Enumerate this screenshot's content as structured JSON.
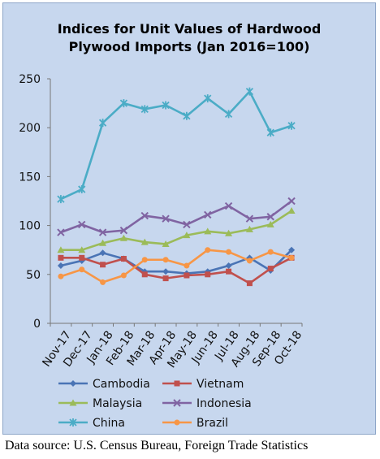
{
  "chart_data": {
    "type": "line",
    "title_line1": "Indices for Unit Values of Hardwood",
    "title_line2": "Plywood Imports (Jan 2016=100)",
    "categories": [
      "Nov-17",
      "Dec-17",
      "Jan-18",
      "Feb-18",
      "Mar-18",
      "Apr-18",
      "May-18",
      "Jun-18",
      "Jul-18",
      "Aug-18",
      "Sep-18",
      "Oct-18"
    ],
    "ylim": [
      0,
      250
    ],
    "yticks": [
      0,
      50,
      100,
      150,
      200,
      250
    ],
    "grid": false,
    "legend_position": "bottom",
    "series": [
      {
        "name": "Cambodia",
        "color": "#4a74b5",
        "marker": "diamond",
        "values": [
          59,
          64,
          72,
          66,
          53,
          53,
          51,
          53,
          59,
          67,
          54,
          75
        ]
      },
      {
        "name": "Vietnam",
        "color": "#c0504d",
        "marker": "square",
        "values": [
          67,
          67,
          60,
          66,
          50,
          46,
          49,
          50,
          53,
          41,
          56,
          67
        ]
      },
      {
        "name": "Malaysia",
        "color": "#9bbb59",
        "marker": "triangle",
        "values": [
          75,
          75,
          82,
          87,
          83,
          81,
          90,
          94,
          92,
          96,
          101,
          115
        ]
      },
      {
        "name": "Indonesia",
        "color": "#8064a2",
        "marker": "x",
        "values": [
          93,
          101,
          93,
          95,
          110,
          107,
          101,
          111,
          120,
          107,
          109,
          125
        ]
      },
      {
        "name": "China",
        "color": "#4bacc6",
        "marker": "asterisk",
        "values": [
          127,
          137,
          205,
          225,
          219,
          223,
          212,
          230,
          214,
          237,
          195,
          202
        ]
      },
      {
        "name": "Brazil",
        "color": "#f79646",
        "marker": "circle",
        "values": [
          48,
          55,
          42,
          49,
          65,
          65,
          59,
          75,
          73,
          64,
          73,
          67
        ]
      }
    ]
  },
  "source_text": "Data source: U.S. Census Bureau, Foreign Trade Statistics"
}
